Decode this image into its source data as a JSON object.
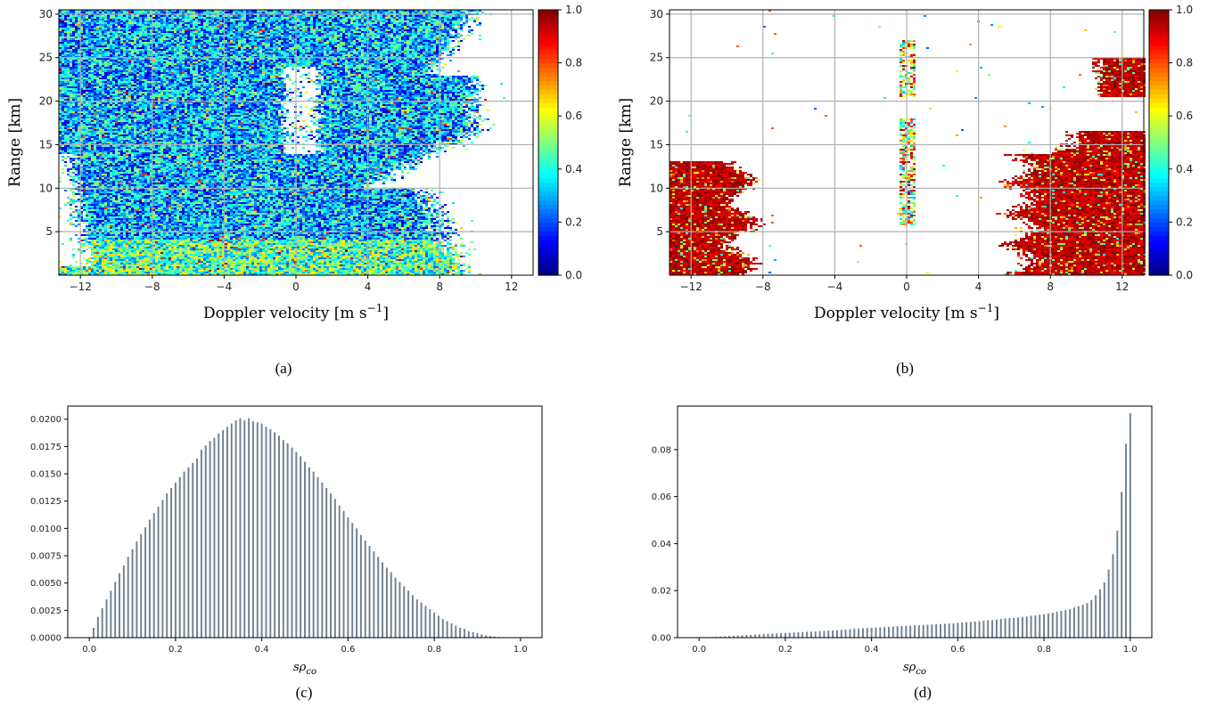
{
  "colors": {
    "bar": "#708090",
    "grid": "#b0b0b0",
    "colormap": "jet"
  },
  "chart_data": [
    {
      "id": "a",
      "type": "heatmap",
      "caption": "(a)",
      "xlabel": "Doppler velocity [m s",
      "xlabel_sup": "−1",
      "xlabel_close": "]",
      "ylabel": "Range [km]",
      "xlim": [
        -13.2,
        13.2
      ],
      "ylim": [
        0,
        30.5
      ],
      "xticks": [
        -12,
        -8,
        -4,
        0,
        4,
        8,
        12
      ],
      "xtick_labels": [
        "−12",
        "−8",
        "−4",
        "0",
        "4",
        "8",
        "12"
      ],
      "yticks": [
        5,
        10,
        15,
        20,
        25,
        30
      ],
      "ytick_labels": [
        "5",
        "10",
        "15",
        "20",
        "25",
        "30"
      ],
      "grid": true,
      "colorbar": {
        "range": [
          0,
          1
        ],
        "ticks": [
          0.0,
          0.2,
          0.4,
          0.6,
          0.8,
          1.0
        ],
        "tick_labels": [
          "0.0",
          "0.2",
          "0.4",
          "0.6",
          "0.8",
          "1.0"
        ]
      },
      "pattern": "noise"
    },
    {
      "id": "b",
      "type": "heatmap",
      "caption": "(b)",
      "xlabel": "Doppler velocity [m s",
      "xlabel_sup": "−1",
      "xlabel_close": "]",
      "ylabel": "Range [km]",
      "xlim": [
        -13.2,
        13.2
      ],
      "ylim": [
        0,
        30.5
      ],
      "xticks": [
        -12,
        -8,
        -4,
        0,
        4,
        8,
        12
      ],
      "xtick_labels": [
        "−12",
        "−8",
        "−4",
        "0",
        "4",
        "8",
        "12"
      ],
      "yticks": [
        5,
        10,
        15,
        20,
        25,
        30
      ],
      "ytick_labels": [
        "5",
        "10",
        "15",
        "20",
        "25",
        "30"
      ],
      "grid": true,
      "colorbar": {
        "range": [
          0,
          1
        ],
        "ticks": [
          0.0,
          0.2,
          0.4,
          0.6,
          0.8,
          1.0
        ],
        "tick_labels": [
          "0.0",
          "0.2",
          "0.4",
          "0.6",
          "0.8",
          "1.0"
        ]
      },
      "pattern": "signal"
    },
    {
      "id": "c",
      "type": "bar",
      "caption": "(c)",
      "xlabel": "sρ",
      "xlabel_sub": "co",
      "xlim": [
        -0.05,
        1.05
      ],
      "ylim": [
        0,
        0.0212
      ],
      "xticks": [
        0.0,
        0.2,
        0.4,
        0.6,
        0.8,
        1.0
      ],
      "xtick_labels": [
        "0.0",
        "0.2",
        "0.4",
        "0.6",
        "0.8",
        "1.0"
      ],
      "yticks": [
        0,
        0.0025,
        0.005,
        0.0075,
        0.01,
        0.0125,
        0.015,
        0.0175,
        0.02
      ],
      "ytick_labels": [
        "0.0000",
        "0.0025",
        "0.0050",
        "0.0075",
        "0.0100",
        "0.0125",
        "0.0150",
        "0.0175",
        "0.0200"
      ],
      "bar_width": 0.004,
      "x": [
        0.01,
        0.02,
        0.03,
        0.04,
        0.05,
        0.06,
        0.07,
        0.08,
        0.09,
        0.1,
        0.11,
        0.12,
        0.13,
        0.14,
        0.15,
        0.16,
        0.17,
        0.18,
        0.19,
        0.2,
        0.21,
        0.22,
        0.23,
        0.24,
        0.25,
        0.26,
        0.27,
        0.28,
        0.29,
        0.3,
        0.31,
        0.32,
        0.33,
        0.34,
        0.35,
        0.36,
        0.37,
        0.38,
        0.39,
        0.4,
        0.41,
        0.42,
        0.43,
        0.44,
        0.45,
        0.46,
        0.47,
        0.48,
        0.49,
        0.5,
        0.51,
        0.52,
        0.53,
        0.54,
        0.55,
        0.56,
        0.57,
        0.58,
        0.59,
        0.6,
        0.61,
        0.62,
        0.63,
        0.64,
        0.65,
        0.66,
        0.67,
        0.68,
        0.69,
        0.7,
        0.71,
        0.72,
        0.73,
        0.74,
        0.75,
        0.76,
        0.77,
        0.78,
        0.79,
        0.8,
        0.81,
        0.82,
        0.83,
        0.84,
        0.85,
        0.86,
        0.87,
        0.88,
        0.89,
        0.9,
        0.91,
        0.92,
        0.93,
        0.94,
        0.95,
        0.96,
        0.97,
        0.98,
        0.99,
        1.0
      ],
      "values": [
        0.0009,
        0.0019,
        0.0027,
        0.0035,
        0.0043,
        0.0051,
        0.0059,
        0.0066,
        0.0074,
        0.0081,
        0.0088,
        0.0095,
        0.0101,
        0.0108,
        0.0114,
        0.012,
        0.0126,
        0.0132,
        0.0137,
        0.0142,
        0.0147,
        0.0152,
        0.0156,
        0.016,
        0.0164,
        0.0172,
        0.0176,
        0.018,
        0.0183,
        0.0187,
        0.019,
        0.0193,
        0.0196,
        0.0199,
        0.0201,
        0.0199,
        0.0201,
        0.0198,
        0.0197,
        0.0196,
        0.0193,
        0.0191,
        0.0188,
        0.0185,
        0.0181,
        0.0178,
        0.0174,
        0.017,
        0.0166,
        0.0161,
        0.0156,
        0.0152,
        0.0147,
        0.0142,
        0.0137,
        0.0132,
        0.0127,
        0.0121,
        0.0116,
        0.011,
        0.0105,
        0.01,
        0.0094,
        0.0089,
        0.0084,
        0.0079,
        0.0074,
        0.0069,
        0.0064,
        0.006,
        0.0055,
        0.0051,
        0.0047,
        0.0043,
        0.0039,
        0.0035,
        0.0032,
        0.0029,
        0.0026,
        0.0023,
        0.002,
        0.0017,
        0.0015,
        0.0013,
        0.0011,
        0.0009,
        0.0008,
        0.0006,
        0.0005,
        0.0004,
        0.0003,
        0.0002,
        0.00015,
        0.0001,
        7e-05,
        5e-05,
        3e-05,
        2e-05,
        1e-05,
        1e-05
      ]
    },
    {
      "id": "d",
      "type": "bar",
      "caption": "(d)",
      "xlabel": "sρ",
      "xlabel_sub": "co",
      "xlim": [
        -0.05,
        1.05
      ],
      "ylim": [
        0,
        0.0985
      ],
      "xticks": [
        0.0,
        0.2,
        0.4,
        0.6,
        0.8,
        1.0
      ],
      "xtick_labels": [
        "0.0",
        "0.2",
        "0.4",
        "0.6",
        "0.8",
        "1.0"
      ],
      "yticks": [
        0,
        0.02,
        0.04,
        0.06,
        0.08
      ],
      "ytick_labels": [
        "0.00",
        "0.02",
        "0.04",
        "0.06",
        "0.08"
      ],
      "bar_width": 0.004,
      "x": [
        0.01,
        0.02,
        0.03,
        0.04,
        0.05,
        0.06,
        0.07,
        0.08,
        0.09,
        0.1,
        0.11,
        0.12,
        0.13,
        0.14,
        0.15,
        0.16,
        0.17,
        0.18,
        0.19,
        0.2,
        0.21,
        0.22,
        0.23,
        0.24,
        0.25,
        0.26,
        0.27,
        0.28,
        0.29,
        0.3,
        0.31,
        0.32,
        0.33,
        0.34,
        0.35,
        0.36,
        0.37,
        0.38,
        0.39,
        0.4,
        0.41,
        0.42,
        0.43,
        0.44,
        0.45,
        0.46,
        0.47,
        0.48,
        0.49,
        0.5,
        0.51,
        0.52,
        0.53,
        0.54,
        0.55,
        0.56,
        0.57,
        0.58,
        0.59,
        0.6,
        0.61,
        0.62,
        0.63,
        0.64,
        0.65,
        0.66,
        0.67,
        0.68,
        0.69,
        0.7,
        0.71,
        0.72,
        0.73,
        0.74,
        0.75,
        0.76,
        0.77,
        0.78,
        0.79,
        0.8,
        0.81,
        0.82,
        0.83,
        0.84,
        0.85,
        0.86,
        0.87,
        0.88,
        0.89,
        0.9,
        0.91,
        0.92,
        0.93,
        0.94,
        0.95,
        0.96,
        0.97,
        0.98,
        0.99,
        1.0
      ],
      "values": [
        0.0001,
        0.0002,
        0.0003,
        0.0004,
        0.0005,
        0.0006,
        0.0007,
        0.0008,
        0.0009,
        0.001,
        0.0011,
        0.0012,
        0.0013,
        0.0014,
        0.0015,
        0.0016,
        0.0017,
        0.0018,
        0.0019,
        0.002,
        0.0021,
        0.0022,
        0.0023,
        0.0024,
        0.0025,
        0.0026,
        0.0027,
        0.0028,
        0.0029,
        0.003,
        0.0031,
        0.0032,
        0.0033,
        0.0034,
        0.0036,
        0.0038,
        0.0039,
        0.004,
        0.0041,
        0.0042,
        0.0043,
        0.0044,
        0.0045,
        0.0046,
        0.0047,
        0.0048,
        0.0049,
        0.005,
        0.0051,
        0.0052,
        0.0053,
        0.0054,
        0.0055,
        0.0056,
        0.0057,
        0.0058,
        0.0059,
        0.006,
        0.0061,
        0.0063,
        0.0065,
        0.0066,
        0.0067,
        0.0069,
        0.007,
        0.0072,
        0.0074,
        0.0075,
        0.0077,
        0.008,
        0.0082,
        0.0083,
        0.0084,
        0.0086,
        0.0088,
        0.009,
        0.0093,
        0.0095,
        0.0098,
        0.01,
        0.0103,
        0.0106,
        0.011,
        0.0114,
        0.0118,
        0.0122,
        0.0128,
        0.0134,
        0.014,
        0.0147,
        0.016,
        0.018,
        0.0205,
        0.0235,
        0.029,
        0.0355,
        0.0455,
        0.062,
        0.0825,
        0.0955
      ]
    }
  ]
}
